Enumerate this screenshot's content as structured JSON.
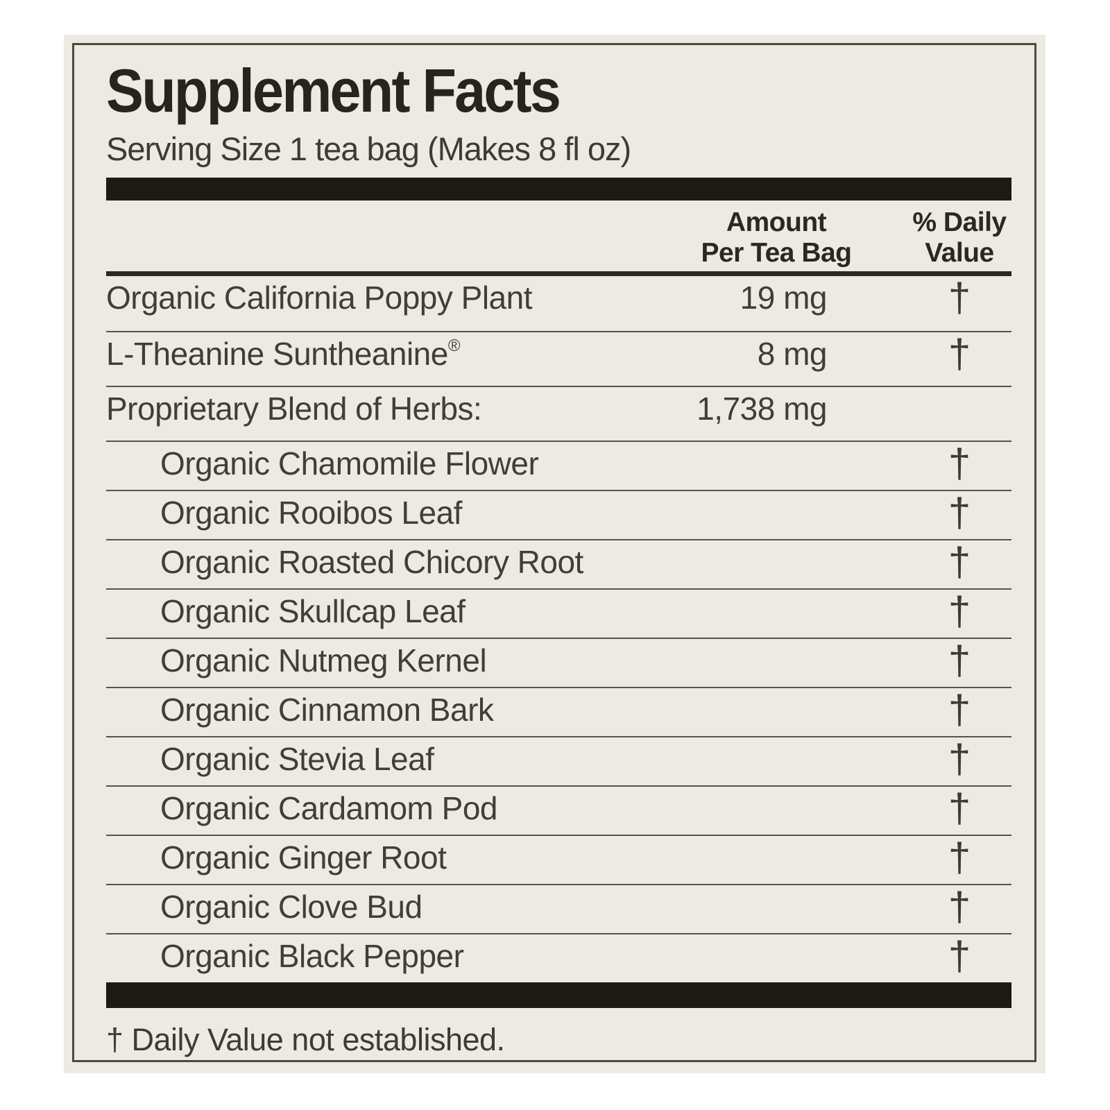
{
  "label": {
    "title": "Supplement Facts",
    "serving_line": "Serving Size 1 tea bag (Makes 8 fl oz)",
    "header": {
      "amount_line1": "Amount",
      "amount_line2": "Per Tea Bag",
      "dv_line1": "% Daily",
      "dv_line2": "Value"
    },
    "rows": [
      {
        "name": "Organic California Poppy Plant",
        "sup": "",
        "amount": "19 mg",
        "dv": "†",
        "indent": false
      },
      {
        "name": "L-Theanine Suntheanine",
        "sup": "®",
        "amount": "8 mg",
        "dv": "†",
        "indent": false
      },
      {
        "name": "Proprietary Blend of Herbs:",
        "sup": "",
        "amount": "1,738 mg",
        "dv": "",
        "indent": false
      },
      {
        "name": "Organic Chamomile Flower",
        "sup": "",
        "amount": "",
        "dv": "†",
        "indent": true
      },
      {
        "name": "Organic Rooibos Leaf",
        "sup": "",
        "amount": "",
        "dv": "†",
        "indent": true
      },
      {
        "name": "Organic Roasted Chicory Root",
        "sup": "",
        "amount": "",
        "dv": "†",
        "indent": true
      },
      {
        "name": "Organic Skullcap Leaf",
        "sup": "",
        "amount": "",
        "dv": "†",
        "indent": true
      },
      {
        "name": "Organic Nutmeg Kernel",
        "sup": "",
        "amount": "",
        "dv": "†",
        "indent": true
      },
      {
        "name": "Organic Cinnamon Bark",
        "sup": "",
        "amount": "",
        "dv": "†",
        "indent": true
      },
      {
        "name": "Organic Stevia Leaf",
        "sup": "",
        "amount": "",
        "dv": "†",
        "indent": true
      },
      {
        "name": "Organic Cardamom Pod",
        "sup": "",
        "amount": "",
        "dv": "†",
        "indent": true
      },
      {
        "name": "Organic Ginger Root",
        "sup": "",
        "amount": "",
        "dv": "†",
        "indent": true
      },
      {
        "name": "Organic Clove Bud",
        "sup": "",
        "amount": "",
        "dv": "†",
        "indent": true
      },
      {
        "name": "Organic Black Pepper",
        "sup": "",
        "amount": "",
        "dv": "†",
        "indent": true
      }
    ],
    "footnote": "† Daily Value not established."
  },
  "colors": {
    "page_bg": "#ffffff",
    "paper": "#edeae3",
    "title_ink": "#27231f",
    "ink": "#413d37",
    "heavy_bar": "#1d1a16",
    "separator": "#57534b",
    "border": "#4e493f"
  }
}
